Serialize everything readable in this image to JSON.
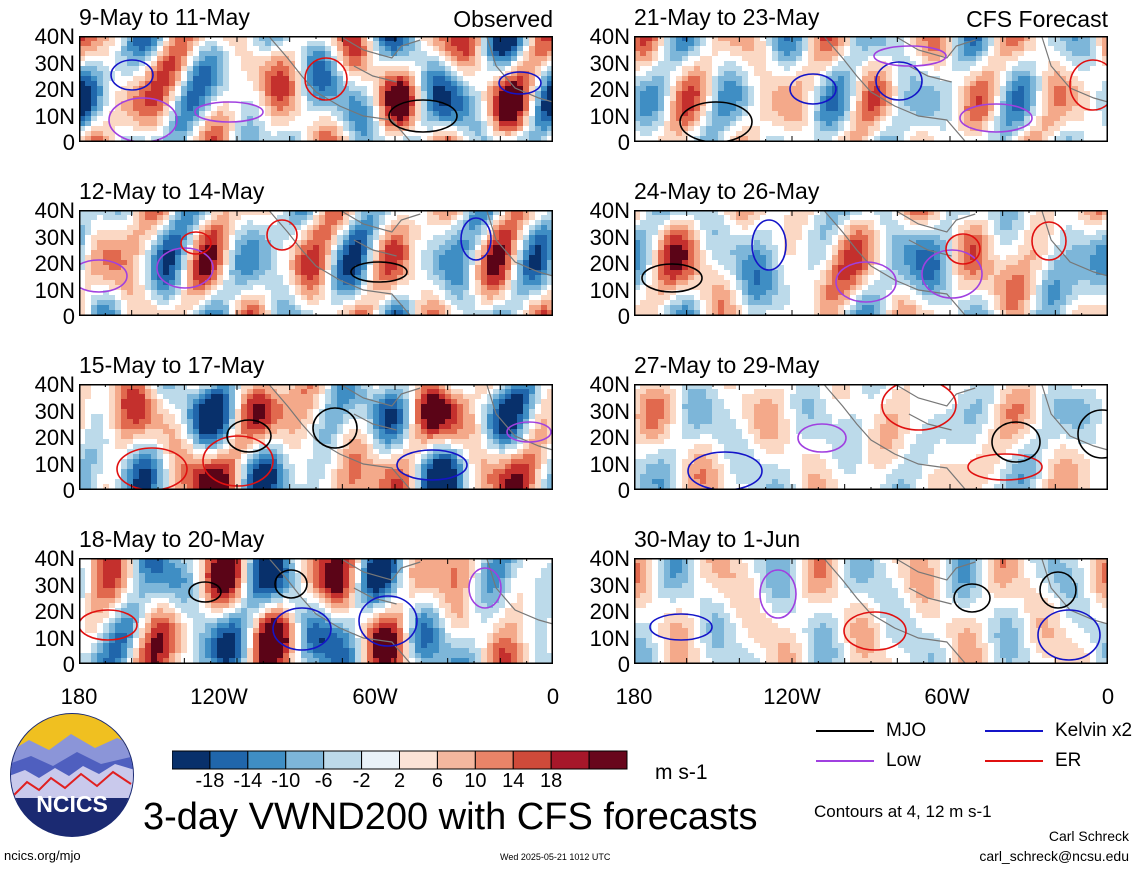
{
  "panels": {
    "observed": [
      {
        "title": "9-May to 11-May",
        "tag": "Observed"
      },
      {
        "title": "12-May to 14-May",
        "tag": ""
      },
      {
        "title": "15-May to 17-May",
        "tag": ""
      },
      {
        "title": "18-May to 20-May",
        "tag": ""
      }
    ],
    "forecast": [
      {
        "title": "21-May to 23-May",
        "tag": "CFS Forecast"
      },
      {
        "title": "24-May to 26-May",
        "tag": ""
      },
      {
        "title": "27-May to 29-May",
        "tag": ""
      },
      {
        "title": "30-May to 1-Jun",
        "tag": ""
      }
    ]
  },
  "chart_data": {
    "type": "heatmap",
    "variable": "VWND200",
    "ylabels": [
      "40N",
      "30N",
      "20N",
      "10N",
      "0"
    ],
    "xlabels": [
      "180",
      "120W",
      "60W",
      "0"
    ],
    "xlim": [
      -180,
      0
    ],
    "ylim": [
      0,
      40
    ],
    "colorbar": {
      "levels": [
        -18,
        -14,
        -10,
        -6,
        -2,
        2,
        6,
        10,
        14,
        18
      ],
      "labels": [
        "-18",
        "-14",
        "-10",
        "-6",
        "-2",
        "2",
        "6",
        "10",
        "14",
        "18"
      ],
      "colors": [
        "#08306b",
        "#2066ab",
        "#3f8ec4",
        "#7db6d9",
        "#bcdaea",
        "#e9f2f8",
        "#ffffff",
        "#fbd8c4",
        "#f4a98a",
        "#e1694e",
        "#c4302d",
        "#8b0d1f",
        "#5b0417"
      ],
      "units": "m s-1"
    },
    "contours": {
      "note": "Contours at 4, 12 m s-1",
      "series": [
        {
          "name": "MJO",
          "color": "#000000"
        },
        {
          "name": "Kelvin x2",
          "color": "#1414c8"
        },
        {
          "name": "Low",
          "color": "#a040e0"
        },
        {
          "name": "ER",
          "color": "#e01010"
        }
      ]
    }
  },
  "title": "3-day VWND200 with CFS forecasts",
  "footer": {
    "url": "ncics.org/mjo",
    "timestamp": "Wed 2025-05-21 1012 UTC",
    "author": "Carl Schreck",
    "email": "carl_schreck@ncsu.edu",
    "logo_text": "NCICS"
  }
}
